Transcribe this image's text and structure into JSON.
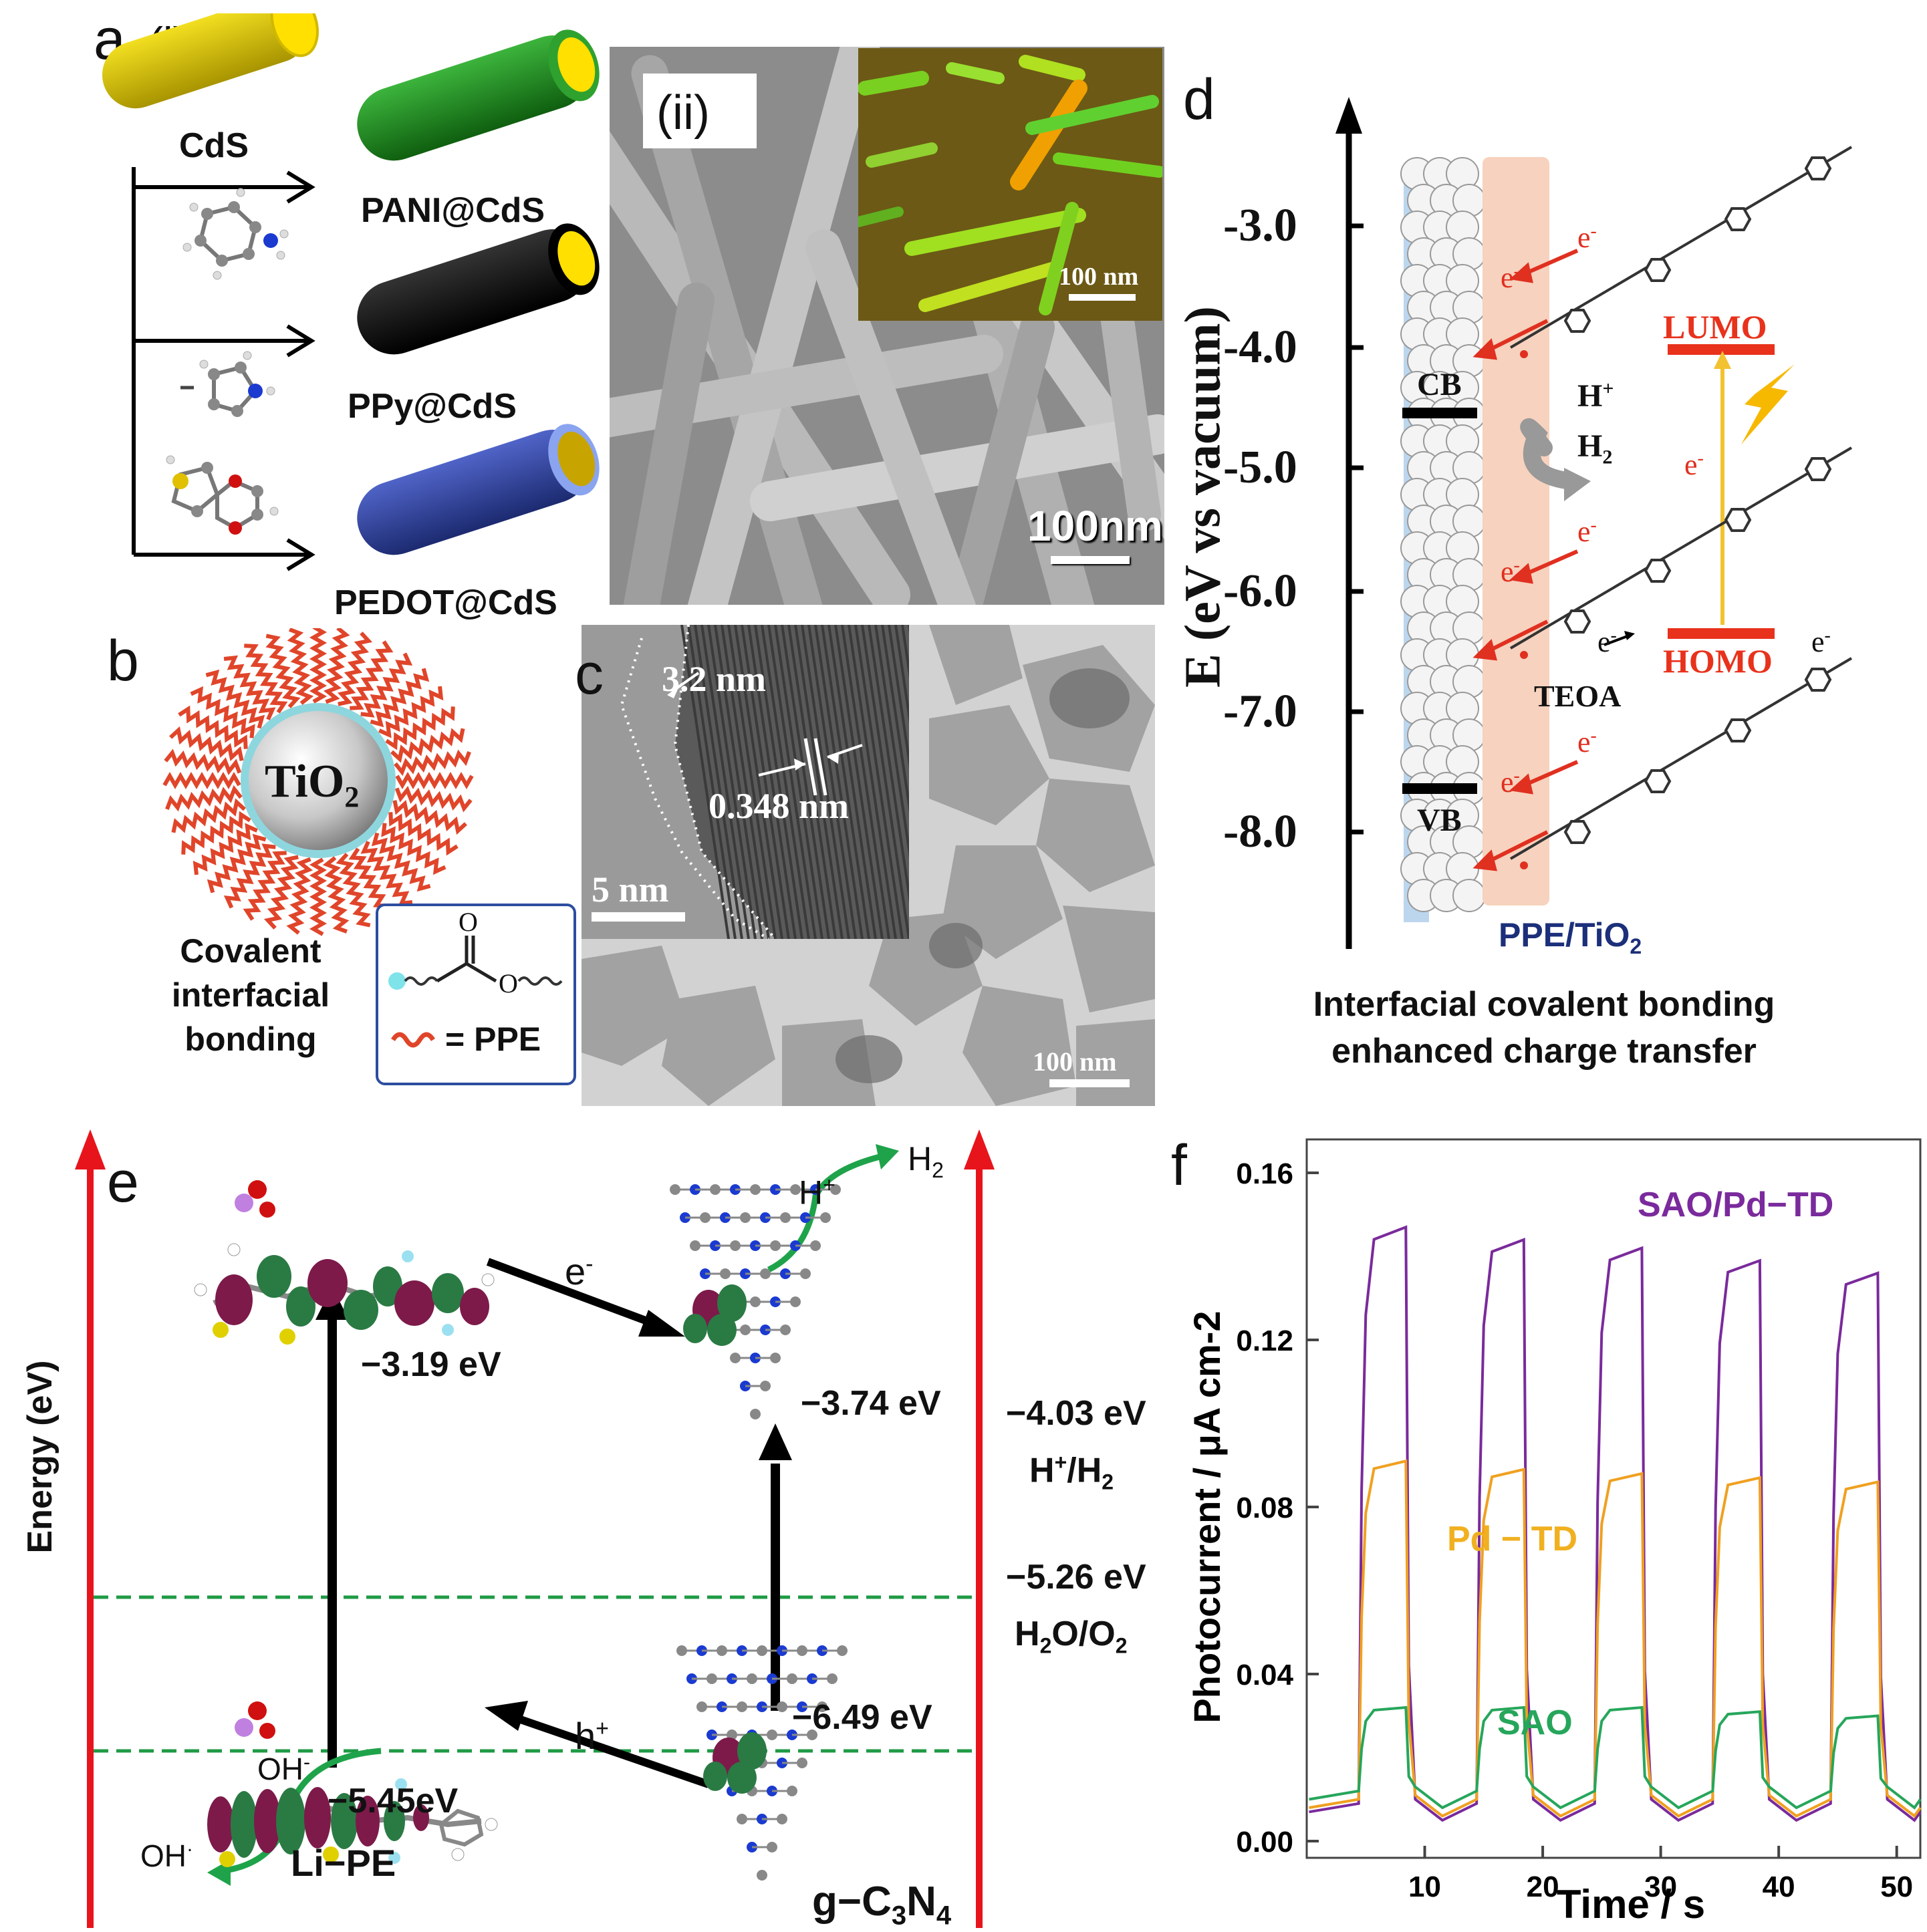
{
  "panel_a": {
    "label": "a",
    "sub_i": "(i)",
    "sub_ii": "(ii)",
    "cds": "CdS",
    "products": [
      "PANI@CdS",
      "PPy@CdS",
      "PEDOT@CdS"
    ],
    "colors": {
      "cds": "#d8c200",
      "pani": "#1e8a1e",
      "ppy": "#111111",
      "pedot": "#2c3e9a",
      "core": "#ffe000"
    },
    "sem_scale": "100nm",
    "inset_scale": "100 nm"
  },
  "panel_b": {
    "label": "b",
    "core": "TiO",
    "core_sub": "2",
    "caption_lines": [
      "Covalent",
      "interfacial",
      "bonding"
    ],
    "legend": "= PPE",
    "legend_o1": "O",
    "legend_o2": "O"
  },
  "panel_c": {
    "label": "c",
    "shell": "3.2 nm",
    "lattice": "0.348 nm",
    "inset_scale": "5 nm",
    "scale": "100 nm"
  },
  "panel_d": {
    "label": "d",
    "y_axis": "E (eV vs vacuum)",
    "ticks": [
      "-3.0",
      "-4.0",
      "-5.0",
      "-6.0",
      "-7.0",
      "-8.0"
    ],
    "cb": "CB",
    "vb": "VB",
    "h_plus": "H",
    "h_plus_sup": "+",
    "h2": "H",
    "h2_sub": "2",
    "lumo": "LUMO",
    "homo": "HOMO",
    "teoa": "TEOA",
    "electron": "e",
    "electron_sup": "-",
    "composite": "PPE/TiO",
    "composite_sub": "2",
    "caption_lines": [
      "Interfacial covalent bonding",
      "enhanced charge transfer"
    ]
  },
  "panel_e": {
    "label": "e",
    "y_axis": "Energy (eV)",
    "lupe_lumo": "−3.19 eV",
    "gcn_lumo": "−3.74 eV",
    "h_level": "−4.03 eV",
    "h_couple": "H",
    "h_couple_sup": "+",
    "h_couple_rest": "/H",
    "h_couple_sub": "2",
    "o_level": "−5.26 eV",
    "o_couple": "H",
    "o_couple_sub1": "2",
    "o_couple_mid": "O/O",
    "o_couple_sub2": "2",
    "gcn_homo": "−6.49 eV",
    "lupe_homo": "−5.45eV",
    "electron": "e",
    "electron_sup": "-",
    "hole": "h",
    "hole_sup": "+",
    "hplus": "H",
    "hplus_sup": "+",
    "h2": "H",
    "h2_sub": "2",
    "oh_minus": "OH",
    "oh_minus_sup": "-",
    "oh_rad": "OH",
    "oh_rad_sup": "·",
    "lupe": "Li−PE",
    "gcn": "g−C",
    "gcn_sub1": "3",
    "gcn_mid": "N",
    "gcn_sub2": "4"
  },
  "panel_f": {
    "label": "f",
    "chart_data": {
      "type": "line",
      "xlabel": "Time / s",
      "ylabel": "Photocurrent / μA cm-2",
      "xlim": [
        0,
        52
      ],
      "ylim": [
        -0.004,
        0.168
      ],
      "x_ticks": [
        10,
        20,
        30,
        40,
        50
      ],
      "y_ticks": [
        "0.00",
        "0.04",
        "0.08",
        "0.12",
        "0.16"
      ],
      "light_on_intervals": [
        [
          4.5,
          8.5
        ],
        [
          14.5,
          18.5
        ],
        [
          24.5,
          28.5
        ],
        [
          34.5,
          38.5
        ],
        [
          44.5,
          48.5
        ]
      ],
      "series": [
        {
          "name": "SAO/Pd−TD",
          "color": "#7a2a9c",
          "dark": 0.007,
          "on_values": [
            0.147,
            0.144,
            0.142,
            0.139,
            0.136
          ]
        },
        {
          "name": "Pd − TD",
          "color": "#f0a020",
          "dark": 0.008,
          "on_values": [
            0.091,
            0.089,
            0.088,
            0.087,
            0.086
          ]
        },
        {
          "name": "SAO",
          "color": "#26a65b",
          "dark": 0.01,
          "on_values": [
            0.032,
            0.032,
            0.032,
            0.031,
            0.03
          ]
        }
      ]
    }
  }
}
